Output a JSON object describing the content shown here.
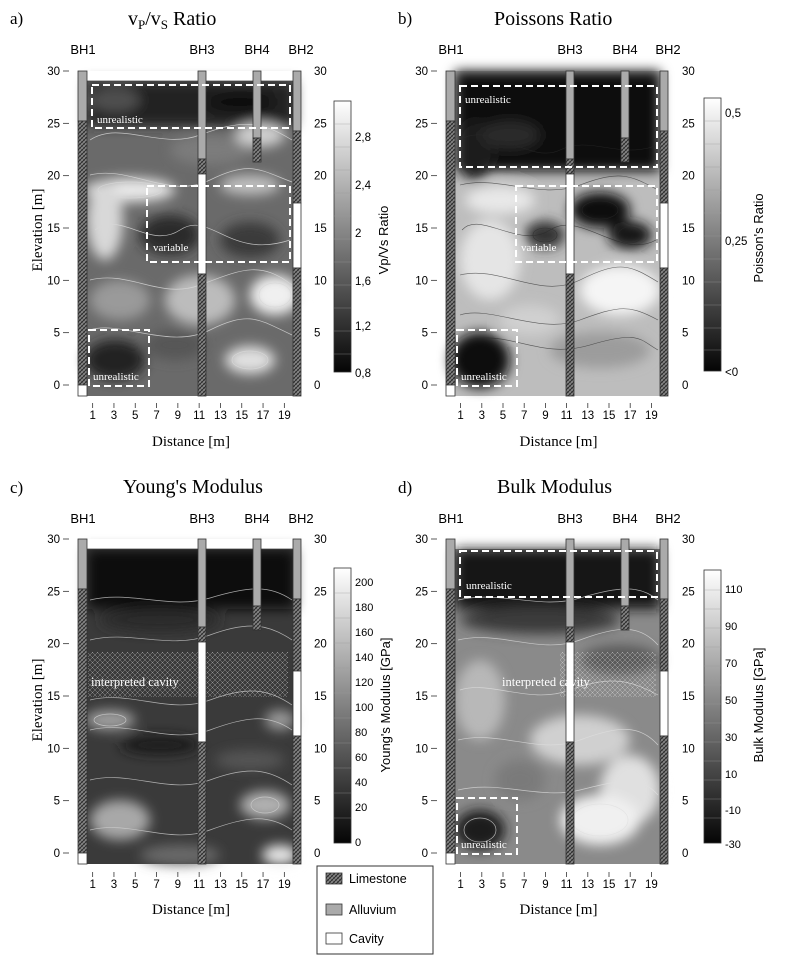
{
  "panels": [
    {
      "letter": "a)",
      "title_main": "v",
      "title_sub1": "P",
      "title_mid": "/v",
      "title_sub2": "S",
      "title_end": " Ratio",
      "cbar_label": "Vp/Vs Ratio",
      "cbar_ticks": [
        "2,8",
        "2,4",
        "2",
        "1,6",
        "1,2",
        "0,8"
      ],
      "annotations": [
        "unrealistic",
        "variable",
        "unrealistic"
      ],
      "cavity_label": ""
    },
    {
      "letter": "b)",
      "title_main": "Poissons Ratio",
      "cbar_label": "Poisson's Ratio",
      "cbar_ticks": [
        "0,5",
        "0,25",
        "<0"
      ],
      "annotations": [
        "unrealistic",
        "variable",
        "unrealistic"
      ],
      "cavity_label": ""
    },
    {
      "letter": "c)",
      "title_main": "Young's Modulus",
      "cbar_label": "Young's Modulus [GPa]",
      "cbar_ticks": [
        "200",
        "180",
        "160",
        "140",
        "120",
        "100",
        "80",
        "60",
        "40",
        "20",
        "0"
      ],
      "annotations": [],
      "cavity_label": "interpreted cavity"
    },
    {
      "letter": "d)",
      "title_main": "Bulk Modulus",
      "cbar_label": "Bulk Modulus [GPa]",
      "cbar_ticks": [
        "110",
        "90",
        "70",
        "50",
        "30",
        "10",
        "-10",
        "-30"
      ],
      "annotations": [
        "unrealistic",
        "unrealistic"
      ],
      "cavity_label": "interpreted cavity"
    }
  ],
  "boreholes": [
    "BH1",
    "BH3",
    "BH4",
    "BH2"
  ],
  "x_ticks": [
    "1",
    "3",
    "5",
    "7",
    "9",
    "11",
    "13",
    "15",
    "17",
    "19"
  ],
  "y_ticks": [
    "30",
    "25",
    "20",
    "15",
    "10",
    "5",
    "0"
  ],
  "xlabel": "Distance [m]",
  "ylabel": "Elevation [m]",
  "legend": [
    "Limestone",
    "Alluvium",
    "Cavity"
  ],
  "chart_data": [
    {
      "type": "heatmap",
      "title": "vP/vS Ratio",
      "xlabel": "Distance [m]",
      "ylabel": "Elevation [m]",
      "xlim": [
        0,
        20
      ],
      "ylim": [
        0,
        30
      ],
      "colorbar": {
        "label": "Vp/Vs Ratio",
        "range": [
          0.8,
          3.0
        ]
      },
      "boreholes": [
        {
          "name": "BH1",
          "x": 0
        },
        {
          "name": "BH3",
          "x": 11
        },
        {
          "name": "BH4",
          "x": 16
        },
        {
          "name": "BH2",
          "x": 20
        }
      ],
      "annotations": [
        {
          "text": "unrealistic",
          "x": [
            0.5,
            19.5
          ],
          "y": [
            24.5,
            28.5
          ]
        },
        {
          "text": "variable",
          "x": [
            6,
            19.5
          ],
          "y": [
            12,
            19
          ]
        },
        {
          "text": "unrealistic",
          "x": [
            0.5,
            6
          ],
          "y": [
            0,
            5
          ]
        }
      ]
    },
    {
      "type": "heatmap",
      "title": "Poissons Ratio",
      "xlabel": "Distance [m]",
      "ylabel": "Elevation [m]",
      "xlim": [
        0,
        20
      ],
      "ylim": [
        0,
        30
      ],
      "colorbar": {
        "label": "Poisson's Ratio",
        "range": [
          0,
          0.5
        ]
      },
      "boreholes": [
        {
          "name": "BH1",
          "x": 0
        },
        {
          "name": "BH3",
          "x": 11
        },
        {
          "name": "BH4",
          "x": 16
        },
        {
          "name": "BH2",
          "x": 20
        }
      ],
      "annotations": [
        {
          "text": "unrealistic",
          "x": [
            0.5,
            19.5
          ],
          "y": [
            21,
            28.5
          ]
        },
        {
          "text": "variable",
          "x": [
            6,
            19.5
          ],
          "y": [
            12,
            19
          ]
        },
        {
          "text": "unrealistic",
          "x": [
            0.5,
            6
          ],
          "y": [
            0,
            5
          ]
        }
      ]
    },
    {
      "type": "heatmap",
      "title": "Young's Modulus",
      "xlabel": "Distance [m]",
      "ylabel": "Elevation [m]",
      "xlim": [
        0,
        20
      ],
      "ylim": [
        0,
        30
      ],
      "colorbar": {
        "label": "Young's Modulus [GPa]",
        "range": [
          0,
          200
        ]
      },
      "boreholes": [
        {
          "name": "BH1",
          "x": 0
        },
        {
          "name": "BH3",
          "x": 11
        },
        {
          "name": "BH4",
          "x": 16
        },
        {
          "name": "BH2",
          "x": 20
        }
      ],
      "annotations": [
        {
          "text": "interpreted cavity",
          "x": [
            0.5,
            19
          ],
          "y": [
            14,
            20
          ]
        }
      ]
    },
    {
      "type": "heatmap",
      "title": "Bulk Modulus",
      "xlabel": "Distance [m]",
      "ylabel": "Elevation [m]",
      "xlim": [
        0,
        20
      ],
      "ylim": [
        0,
        30
      ],
      "colorbar": {
        "label": "Bulk Modulus [GPa]",
        "range": [
          -30,
          110
        ]
      },
      "boreholes": [
        {
          "name": "BH1",
          "x": 0
        },
        {
          "name": "BH3",
          "x": 11
        },
        {
          "name": "BH4",
          "x": 16
        },
        {
          "name": "BH2",
          "x": 20
        }
      ],
      "annotations": [
        {
          "text": "unrealistic",
          "x": [
            0.5,
            19.5
          ],
          "y": [
            24.5,
            28.5
          ]
        },
        {
          "text": "interpreted cavity",
          "x": [
            6,
            19
          ],
          "y": [
            14,
            20
          ]
        },
        {
          "text": "unrealistic",
          "x": [
            0.5,
            6
          ],
          "y": [
            0,
            5
          ]
        }
      ]
    }
  ]
}
